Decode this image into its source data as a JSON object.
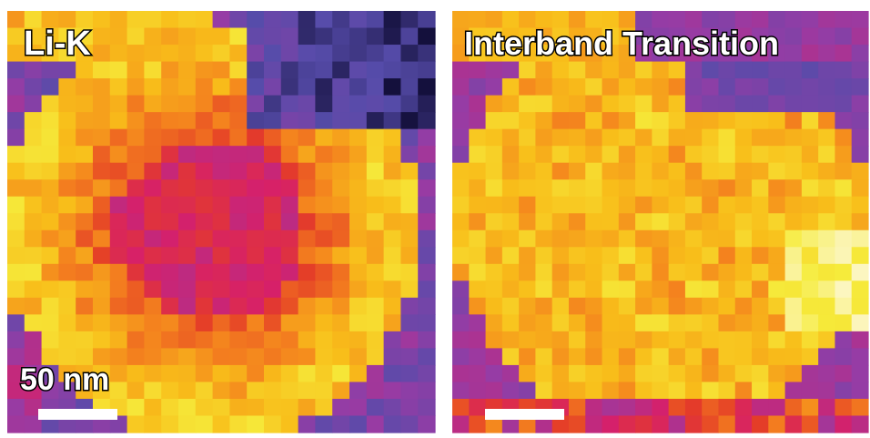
{
  "panels": [
    {
      "label": "Li-K",
      "scale_bar": "50 nm"
    },
    {
      "label": "Interband Transition"
    }
  ]
}
